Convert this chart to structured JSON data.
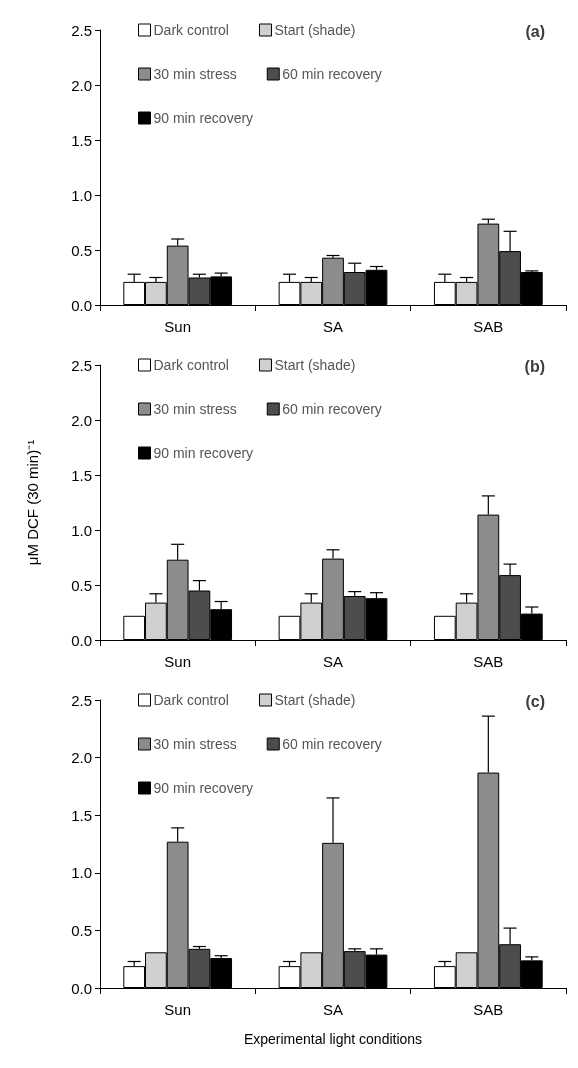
{
  "chart_data": [
    {
      "type": "bar",
      "title": "(a)",
      "categories": [
        "Sun",
        "SA",
        "SAB"
      ],
      "legend": "top",
      "ylim": [
        0,
        2.5
      ],
      "yticks": [
        {
          "value": 0,
          "label": "0.0"
        },
        0.5,
        {
          "value": 1,
          "label": "1.0"
        },
        1.5,
        {
          "value": 2,
          "label": "2.0"
        },
        2.5
      ],
      "grid": false,
      "series": [
        {
          "name": "Dark control",
          "color": "#ffffff",
          "values": [
            0.21,
            0.21,
            0.21
          ],
          "errors": [
            [
              0.21,
              0.28
            ],
            [
              0.21,
              0.28
            ],
            [
              0.21,
              0.28
            ]
          ]
        },
        {
          "name": "Start (shade)",
          "color": "#d0d0d0",
          "values": [
            0.21,
            0.21,
            0.21
          ],
          "errors": [
            [
              0.21,
              0.25
            ],
            [
              0.21,
              0.25
            ],
            [
              0.21,
              0.25
            ]
          ]
        },
        {
          "name": "30 min stress",
          "color": "#8c8c8c",
          "values": [
            0.54,
            0.43,
            0.74
          ],
          "errors": [
            [
              0.54,
              0.6
            ],
            [
              0.43,
              0.45
            ],
            [
              0.74,
              0.78
            ]
          ]
        },
        {
          "name": "60 min recovery",
          "color": "#4d4d4d",
          "values": [
            0.25,
            0.3,
            0.49
          ],
          "errors": [
            [
              0.25,
              0.28
            ],
            [
              0.3,
              0.38
            ],
            [
              0.49,
              0.67
            ]
          ]
        },
        {
          "name": "90 min recovery",
          "color": "#000000",
          "values": [
            0.26,
            0.32,
            0.3
          ],
          "errors": [
            [
              0.26,
              0.29
            ],
            [
              0.32,
              0.35
            ],
            [
              0.3,
              0.31
            ]
          ]
        }
      ]
    },
    {
      "type": "bar",
      "title": "(b)",
      "ylabel": "μM DCF (30 min)⁻¹",
      "categories": [
        "Sun",
        "SA",
        "SAB"
      ],
      "legend": "top",
      "ylim": [
        0,
        2.5
      ],
      "yticks": [
        {
          "value": 0,
          "label": "0.0"
        },
        0.5,
        {
          "value": 1,
          "label": "1.0"
        },
        1.5,
        {
          "value": 2,
          "label": "2.0"
        },
        2.5
      ],
      "grid": false,
      "series": [
        {
          "name": "Dark control",
          "color": "#ffffff",
          "values": [
            0.22,
            0.22,
            0.22
          ],
          "errors": [
            null,
            null,
            null
          ]
        },
        {
          "name": "Start (shade)",
          "color": "#d0d0d0",
          "values": [
            0.34,
            0.34,
            0.34
          ],
          "errors": [
            [
              0.34,
              0.42
            ],
            [
              0.34,
              0.42
            ],
            [
              0.34,
              0.42
            ]
          ]
        },
        {
          "name": "30 min stress",
          "color": "#8c8c8c",
          "values": [
            0.73,
            0.74,
            1.14
          ],
          "errors": [
            [
              0.73,
              0.87
            ],
            [
              0.74,
              0.82
            ],
            [
              1.14,
              1.31
            ]
          ]
        },
        {
          "name": "60 min recovery",
          "color": "#4d4d4d",
          "values": [
            0.45,
            0.4,
            0.59
          ],
          "errors": [
            [
              0.45,
              0.54
            ],
            [
              0.4,
              0.44
            ],
            [
              0.59,
              0.69
            ]
          ]
        },
        {
          "name": "90 min recovery",
          "color": "#000000",
          "values": [
            0.28,
            0.38,
            0.24
          ],
          "errors": [
            [
              0.28,
              0.35
            ],
            [
              0.38,
              0.43
            ],
            [
              0.24,
              0.3
            ]
          ]
        }
      ]
    },
    {
      "type": "bar",
      "title": "(c)",
      "xlabel": "Experimental light conditions",
      "categories": [
        "Sun",
        "SA",
        "SAB"
      ],
      "legend": "top",
      "ylim": [
        0,
        2.5
      ],
      "yticks": [
        {
          "value": 0,
          "label": "0.0"
        },
        0.5,
        {
          "value": 1,
          "label": "1.0"
        },
        1.5,
        {
          "value": 2,
          "label": "2.0"
        },
        2.5
      ],
      "grid": false,
      "series": [
        {
          "name": "Dark control",
          "color": "#ffffff",
          "values": [
            0.19,
            0.19,
            0.19
          ],
          "errors": [
            [
              0.19,
              0.23
            ],
            [
              0.19,
              0.23
            ],
            [
              0.19,
              0.23
            ]
          ]
        },
        {
          "name": "Start (shade)",
          "color": "#d0d0d0",
          "values": [
            0.31,
            0.31,
            0.31
          ],
          "errors": [
            null,
            null,
            null
          ]
        },
        {
          "name": "30 min stress",
          "color": "#8c8c8c",
          "values": [
            1.27,
            1.26,
            1.87
          ],
          "errors": [
            [
              1.27,
              1.39
            ],
            [
              1.26,
              1.65
            ],
            [
              1.87,
              2.36
            ]
          ]
        },
        {
          "name": "60 min recovery",
          "color": "#4d4d4d",
          "values": [
            0.34,
            0.32,
            0.38
          ],
          "errors": [
            [
              0.34,
              0.36
            ],
            [
              0.32,
              0.34
            ],
            [
              0.38,
              0.52
            ]
          ]
        },
        {
          "name": "90 min recovery",
          "color": "#000000",
          "values": [
            0.26,
            0.29,
            0.24
          ],
          "errors": [
            [
              0.26,
              0.28
            ],
            [
              0.29,
              0.34
            ],
            [
              0.24,
              0.27
            ]
          ]
        }
      ]
    }
  ]
}
